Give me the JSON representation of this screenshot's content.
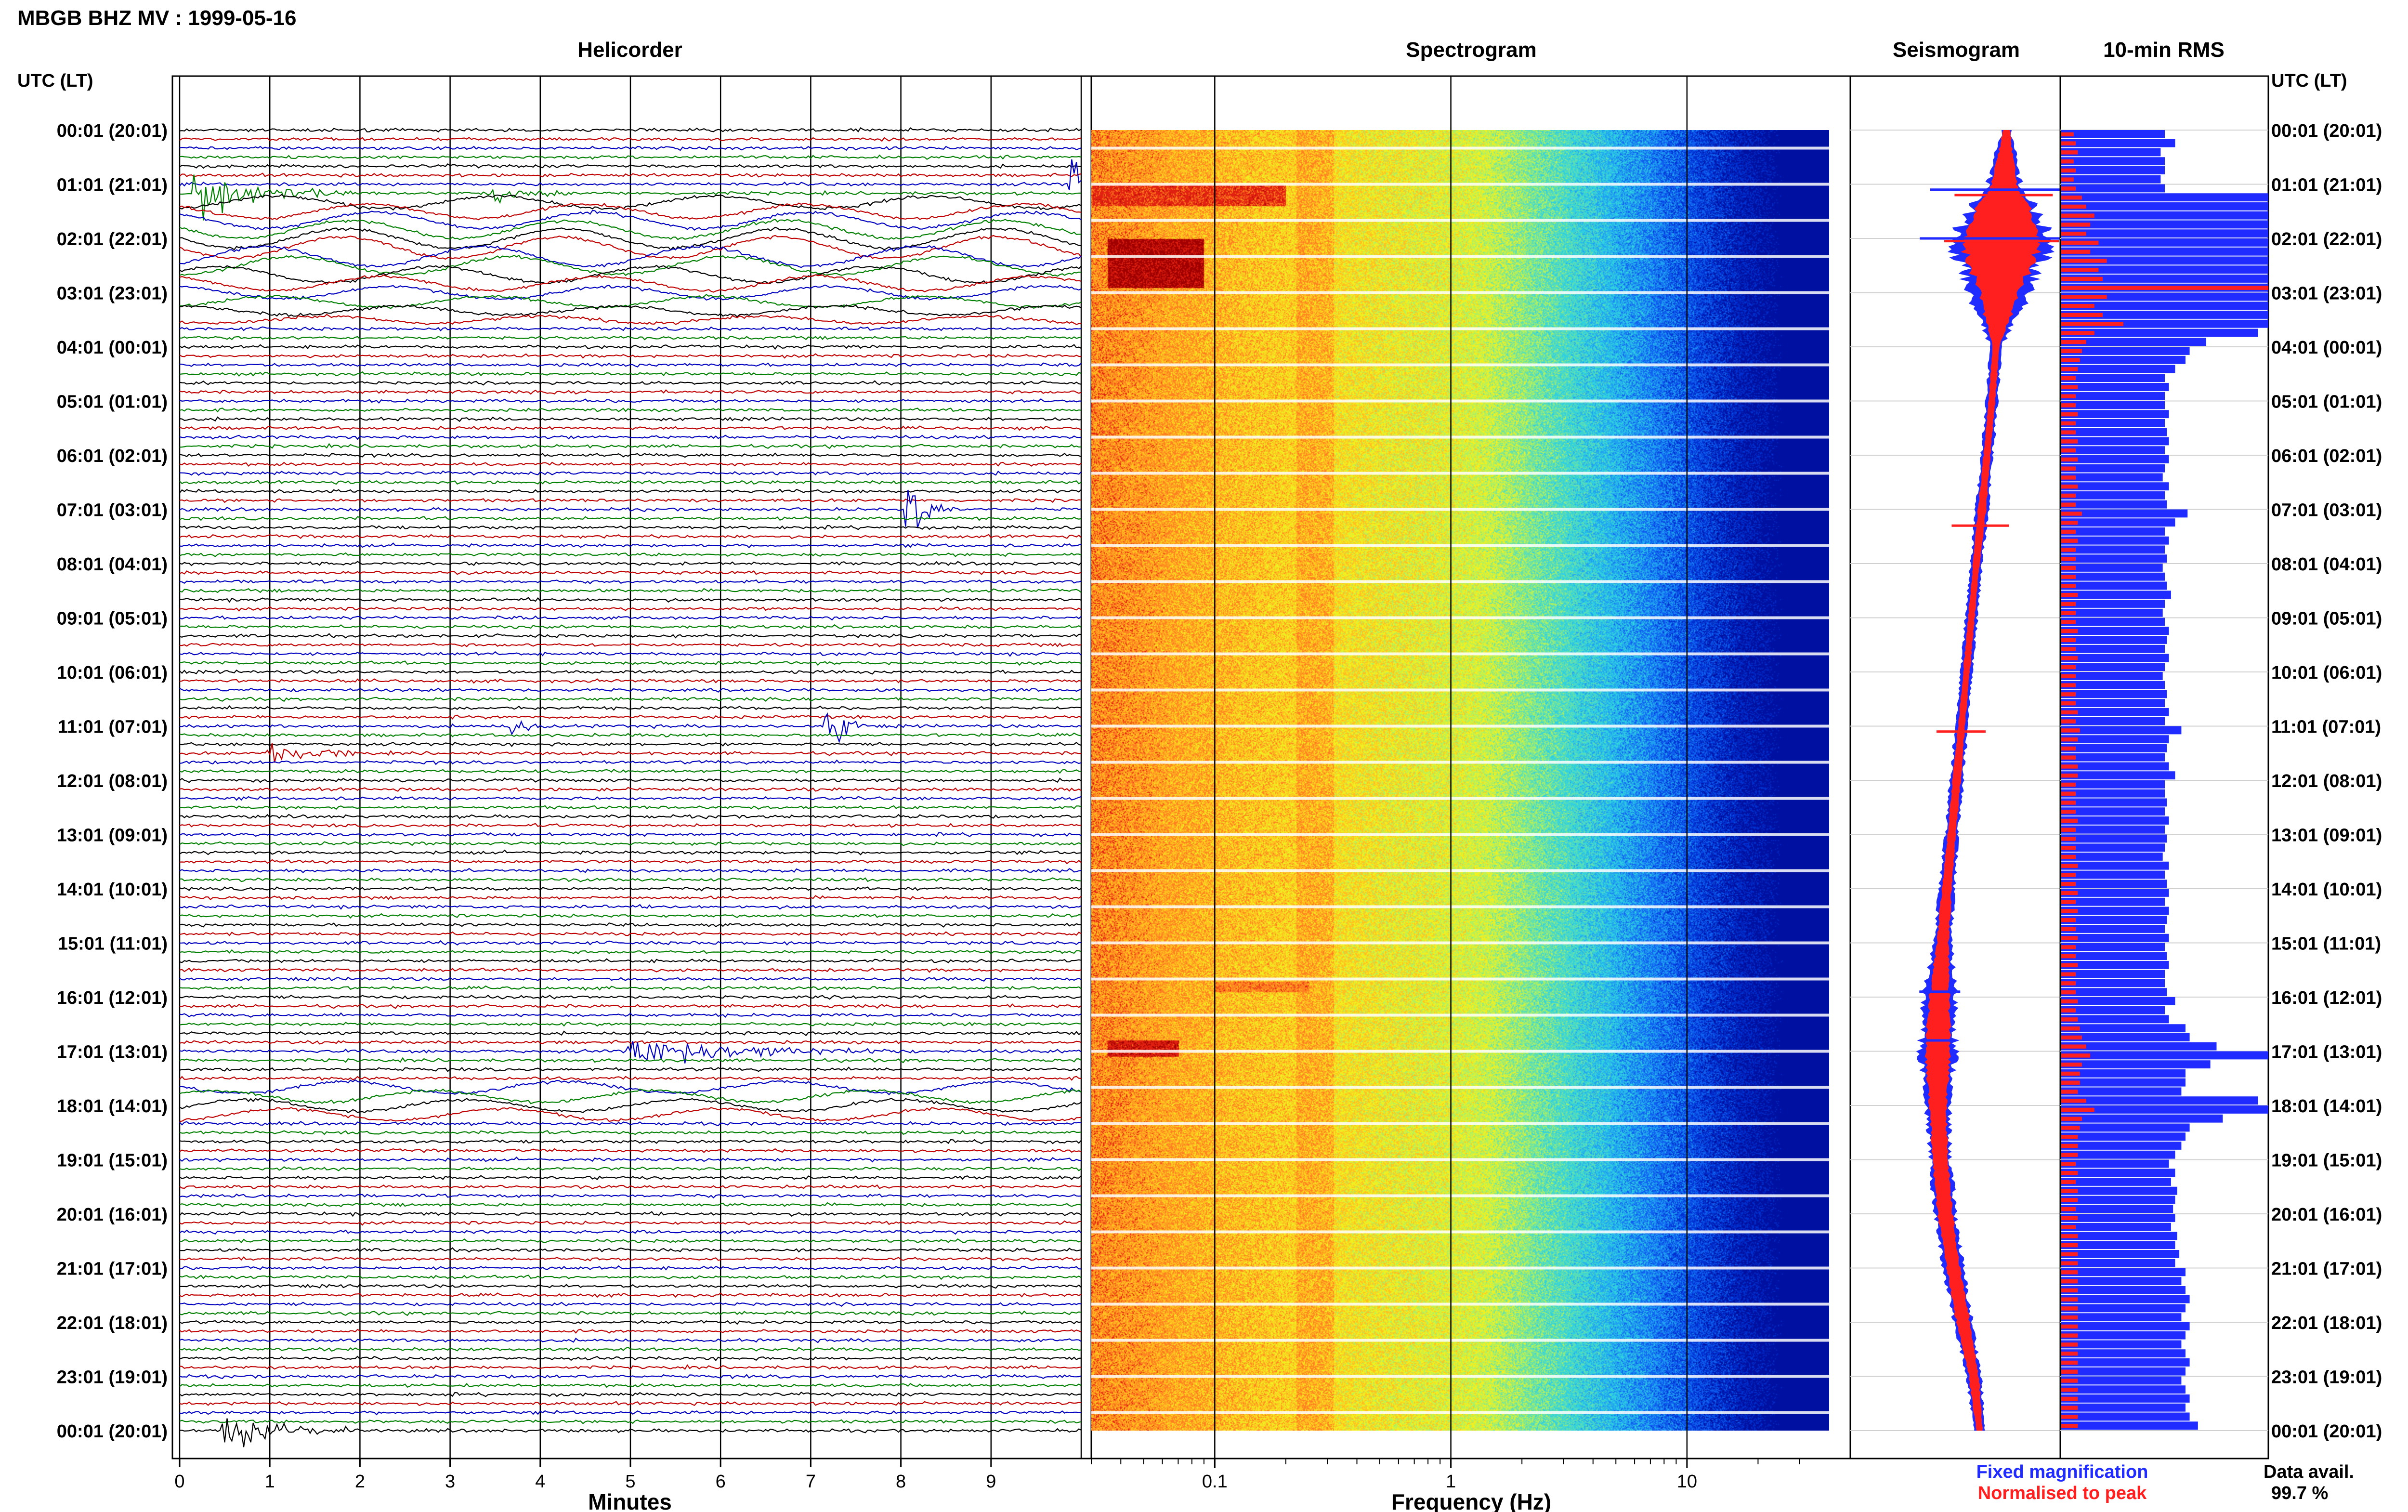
{
  "title": "MBGB BHZ MV : 1999-05-16",
  "time_axis_label": "UTC (LT)",
  "panel_titles": {
    "helicorder": "Helicorder",
    "spectrogram": "Spectrogram",
    "seismogram": "Seismogram",
    "rms": "10-min RMS"
  },
  "hour_labels": [
    "00:01 (20:01)",
    "01:01 (21:01)",
    "02:01 (22:01)",
    "03:01 (23:01)",
    "04:01 (00:01)",
    "05:01 (01:01)",
    "06:01 (02:01)",
    "07:01 (03:01)",
    "08:01 (04:01)",
    "09:01 (05:01)",
    "10:01 (06:01)",
    "11:01 (07:01)",
    "12:01 (08:01)",
    "13:01 (09:01)",
    "14:01 (10:01)",
    "15:01 (11:01)",
    "16:01 (12:01)",
    "17:01 (13:01)",
    "18:01 (14:01)",
    "19:01 (15:01)",
    "20:01 (16:01)",
    "21:01 (17:01)",
    "22:01 (18:01)",
    "23:01 (19:01)",
    "00:01 (20:01)"
  ],
  "helicorder_axis": {
    "label": "Minutes",
    "ticks": [
      "0",
      "1",
      "2",
      "3",
      "4",
      "5",
      "6",
      "7",
      "8",
      "9"
    ]
  },
  "spectrogram_axis": {
    "label": "Frequency (Hz)",
    "ticks": [
      "0.1",
      "1",
      "10"
    ]
  },
  "legend": {
    "fixed": "Fixed magnification",
    "normalised": "Normalised to peak",
    "fixed_color": "#1f2bff",
    "normalised_color": "#ff1f1f"
  },
  "data_availability": {
    "label": "Data avail.",
    "value": "99.7 %"
  },
  "chart_data": [
    {
      "type": "line",
      "name": "helicorder",
      "x_unit": "minutes",
      "xlim": [
        0,
        10
      ],
      "rows_per_hour": 6,
      "row_count": 145,
      "trace_colors": [
        "#000000",
        "#c00000",
        "#0000c0",
        "#008000"
      ],
      "events": [
        {
          "row": 6,
          "minute": 9.9,
          "amplitude": 2.5,
          "width": 0.25
        },
        {
          "row": 7,
          "minute": 0.2,
          "amplitude": 2.2,
          "width": 0.6
        },
        {
          "row": 7,
          "minute": 0.4,
          "amplitude": 1.5,
          "width": 1.5
        },
        {
          "row": 7,
          "minute": 3.5,
          "amplitude": 1.0,
          "width": 0.8
        },
        {
          "row": 42,
          "minute": 8.1,
          "amplitude": 2.0,
          "width": 0.5
        },
        {
          "row": 66,
          "minute": 7.2,
          "amplitude": 2.2,
          "width": 0.4
        },
        {
          "row": 66,
          "minute": 3.7,
          "amplitude": 0.8,
          "width": 0.4
        },
        {
          "row": 69,
          "minute": 1.0,
          "amplitude": 1.2,
          "width": 1.0
        },
        {
          "row": 102,
          "minute": 5.0,
          "amplitude": 1.2,
          "width": 3.0
        },
        {
          "row": 144,
          "minute": 0.5,
          "amplitude": 1.5,
          "width": 1.5
        }
      ],
      "long_period_rows": [
        8,
        9,
        10,
        11,
        12,
        13,
        14,
        15,
        16,
        17,
        18,
        19,
        20,
        21,
        106,
        107,
        108,
        109
      ]
    },
    {
      "type": "heatmap",
      "name": "spectrogram",
      "x_scale": "log",
      "xlim": [
        0.03,
        40
      ],
      "x_unit": "Hz",
      "colormap": [
        "#0010a0",
        "#0030d0",
        "#1060f0",
        "#20a0f0",
        "#30d0e0",
        "#60e0b0",
        "#b0f060",
        "#f0f020",
        "#ffc020",
        "#ff8020",
        "#e02010",
        "#a00000"
      ],
      "hot_spots": [
        {
          "hours": [
            1.0,
            1.4
          ],
          "freq": [
            0.03,
            0.2
          ],
          "level": 0.92
        },
        {
          "hours": [
            2.0,
            2.9
          ],
          "freq": [
            0.035,
            0.09
          ],
          "level": 1.0
        },
        {
          "hours": [
            16.8,
            17.1
          ],
          "freq": [
            0.035,
            0.07
          ],
          "level": 0.95
        },
        {
          "hours": [
            15.7,
            15.9
          ],
          "freq": [
            0.1,
            0.25
          ],
          "level": 0.85
        }
      ]
    },
    {
      "type": "area",
      "name": "seismogram",
      "series": [
        {
          "name": "Fixed magnification",
          "half_width": [
            0.05,
            0.2,
            0.6,
            0.35,
            0.07,
            0.07,
            0.07,
            0.08,
            0.07,
            0.07,
            0.07,
            0.07,
            0.08,
            0.08,
            0.09,
            0.1,
            0.2,
            0.22,
            0.14,
            0.12,
            0.13,
            0.12,
            0.11,
            0.09,
            0.06
          ]
        },
        {
          "name": "Normalised to peak",
          "half_width": [
            0.04,
            0.15,
            0.5,
            0.25,
            0.04,
            0.04,
            0.04,
            0.05,
            0.04,
            0.04,
            0.04,
            0.04,
            0.05,
            0.05,
            0.06,
            0.07,
            0.12,
            0.15,
            0.1,
            0.09,
            0.09,
            0.08,
            0.08,
            0.06,
            0.04
          ]
        }
      ],
      "center_offset": [
        0.45,
        0.42,
        0.39,
        0.36,
        0.32,
        0.27,
        0.21,
        0.15,
        0.08,
        0.02,
        -0.04,
        -0.1,
        -0.16,
        -0.22,
        -0.28,
        -0.33,
        -0.37,
        -0.39,
        -0.39,
        -0.36,
        -0.3,
        -0.2,
        -0.08,
        0.05,
        0.12
      ]
    },
    {
      "type": "bar",
      "name": "10-min RMS",
      "orientation": "horizontal",
      "bar_count": 144,
      "fixed_magnification": [
        0.5,
        0.55,
        0.48,
        0.5,
        0.5,
        0.48,
        0.5,
        1.0,
        1.0,
        1.0,
        1.0,
        1.0,
        1.0,
        1.0,
        1.0,
        1.0,
        1.0,
        1.0,
        1.0,
        1.0,
        1.0,
        1.0,
        0.95,
        0.7,
        0.62,
        0.6,
        0.55,
        0.5,
        0.52,
        0.5,
        0.5,
        0.52,
        0.5,
        0.51,
        0.52,
        0.5,
        0.52,
        0.5,
        0.49,
        0.52,
        0.5,
        0.51,
        0.61,
        0.55,
        0.5,
        0.52,
        0.5,
        0.51,
        0.49,
        0.5,
        0.51,
        0.53,
        0.5,
        0.49,
        0.5,
        0.52,
        0.51,
        0.5,
        0.52,
        0.5,
        0.49,
        0.5,
        0.51,
        0.5,
        0.52,
        0.5,
        0.58,
        0.52,
        0.51,
        0.5,
        0.52,
        0.55,
        0.5,
        0.5,
        0.51,
        0.5,
        0.52,
        0.5,
        0.51,
        0.5,
        0.49,
        0.52,
        0.5,
        0.51,
        0.52,
        0.5,
        0.52,
        0.51,
        0.5,
        0.52,
        0.5,
        0.51,
        0.52,
        0.5,
        0.5,
        0.51,
        0.55,
        0.5,
        0.52,
        0.6,
        0.62,
        0.75,
        1.0,
        0.72,
        0.6,
        0.6,
        0.58,
        0.95,
        1.0,
        0.78,
        0.62,
        0.6,
        0.58,
        0.55,
        0.52,
        0.55,
        0.53,
        0.56,
        0.55,
        0.54,
        0.55,
        0.53,
        0.56,
        0.55,
        0.57,
        0.55,
        0.6,
        0.58,
        0.6,
        0.62,
        0.6,
        0.58,
        0.62,
        0.6,
        0.58,
        0.6,
        0.62,
        0.6,
        0.58,
        0.6,
        0.62,
        0.6,
        0.62,
        0.66
      ],
      "normalised_to_peak": [
        0.06,
        0.07,
        0.08,
        0.06,
        0.07,
        0.06,
        0.07,
        0.1,
        0.12,
        0.16,
        0.14,
        0.12,
        0.18,
        0.14,
        0.22,
        0.18,
        0.2,
        1.0,
        0.22,
        0.16,
        0.2,
        0.3,
        0.16,
        0.12,
        0.1,
        0.09,
        0.08,
        0.07,
        0.08,
        0.07,
        0.07,
        0.08,
        0.07,
        0.07,
        0.08,
        0.07,
        0.08,
        0.07,
        0.07,
        0.08,
        0.07,
        0.07,
        0.1,
        0.08,
        0.07,
        0.08,
        0.07,
        0.07,
        0.07,
        0.07,
        0.07,
        0.08,
        0.07,
        0.07,
        0.07,
        0.08,
        0.07,
        0.07,
        0.08,
        0.07,
        0.07,
        0.07,
        0.07,
        0.07,
        0.08,
        0.07,
        0.09,
        0.08,
        0.07,
        0.07,
        0.08,
        0.08,
        0.07,
        0.07,
        0.07,
        0.07,
        0.08,
        0.07,
        0.07,
        0.07,
        0.07,
        0.08,
        0.07,
        0.07,
        0.08,
        0.07,
        0.08,
        0.07,
        0.07,
        0.08,
        0.07,
        0.07,
        0.08,
        0.07,
        0.07,
        0.07,
        0.08,
        0.07,
        0.08,
        0.09,
        0.1,
        0.12,
        0.14,
        0.1,
        0.09,
        0.09,
        0.08,
        0.12,
        0.16,
        0.1,
        0.09,
        0.08,
        0.08,
        0.08,
        0.07,
        0.08,
        0.07,
        0.08,
        0.08,
        0.07,
        0.08,
        0.07,
        0.08,
        0.08,
        0.08,
        0.08,
        0.08,
        0.08,
        0.08,
        0.08,
        0.08,
        0.08,
        0.08,
        0.08,
        0.08,
        0.08,
        0.08,
        0.08,
        0.08,
        0.08,
        0.08,
        0.08,
        0.08,
        0.08
      ]
    }
  ]
}
